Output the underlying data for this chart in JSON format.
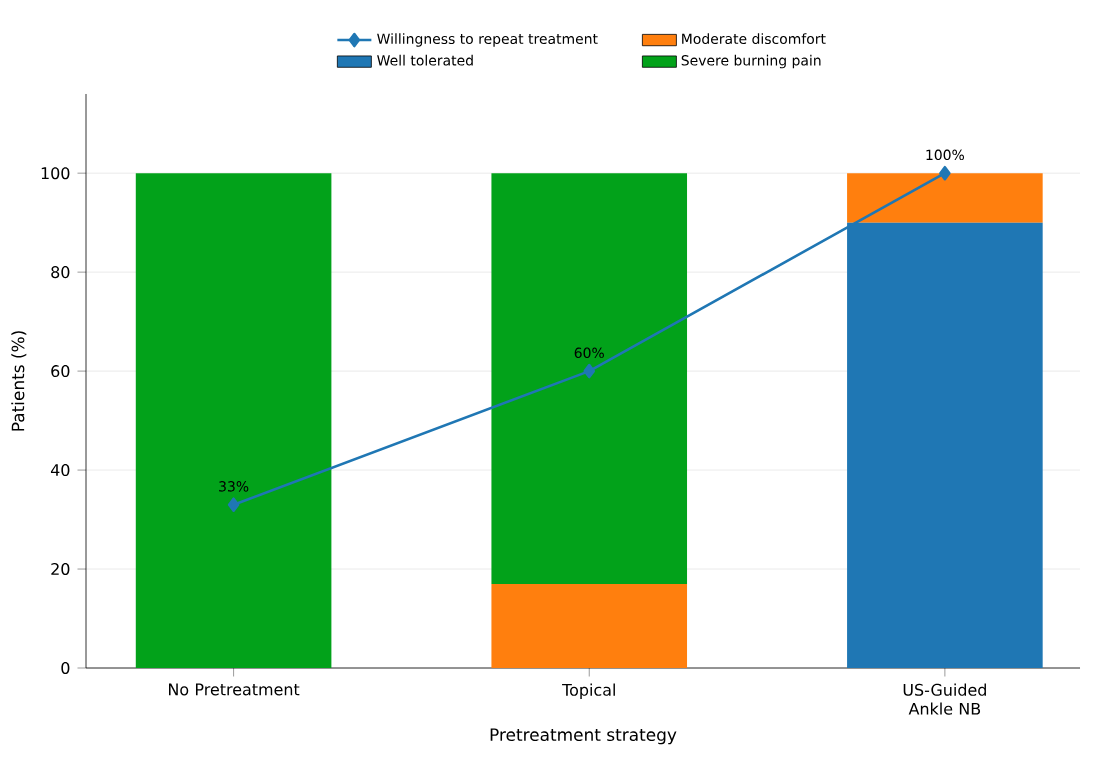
{
  "chart_data": {
    "type": "bar",
    "stacked": true,
    "xlabel": "Pretreatment strategy",
    "ylabel": "Patients (%)",
    "categories": [
      "No Pretreatment",
      "Topical",
      "US-Guided Ankle NB"
    ],
    "ylim": [
      0,
      116
    ],
    "yticks": [
      0,
      20,
      40,
      60,
      80,
      100
    ],
    "grid": "y",
    "legend": "top",
    "series": [
      {
        "name": "Well tolerated",
        "color": "#1f77b4",
        "values": [
          0,
          0,
          90
        ]
      },
      {
        "name": "Moderate discomfort",
        "color": "#ff7f0e",
        "values": [
          0,
          17,
          10
        ]
      },
      {
        "name": "Severe burning pain",
        "color": "#02a21a",
        "values": [
          100,
          83,
          0
        ]
      },
      {
        "name": "Willingness to repeat treatment",
        "type": "line",
        "color": "#1f77b4",
        "marker": "diamond",
        "line_style": "solid",
        "values": [
          33,
          60,
          100
        ],
        "value_labels": [
          "33%",
          "60%",
          "100%"
        ]
      }
    ]
  }
}
